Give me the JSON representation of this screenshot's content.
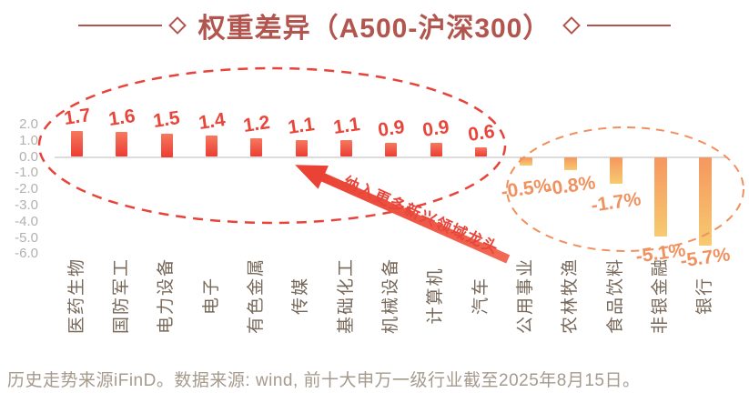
{
  "title": {
    "text": "权重差异（A500-沪深300）"
  },
  "chart_data": {
    "type": "bar",
    "title": "权重差异（A500-沪深300）",
    "categories": [
      "医药生物",
      "国防军工",
      "电力设备",
      "电子",
      "有色金属",
      "传媒",
      "基础化工",
      "机械设备",
      "计算机",
      "汽车",
      "公用事业",
      "农林牧渔",
      "食品饮料",
      "非银金融",
      "银行"
    ],
    "values": [
      1.7,
      1.6,
      1.5,
      1.4,
      1.2,
      1.1,
      1.1,
      0.9,
      0.9,
      0.6,
      -0.5,
      -0.8,
      -1.7,
      -5.1,
      -5.7
    ],
    "value_labels": [
      "1.7",
      "1.6",
      "1.5",
      "1.4",
      "1.2",
      "1.1",
      "1.1",
      "0.9",
      "0.9",
      "0.6",
      "-0.5%",
      "-0.8%",
      "-1.7%",
      "-5.1%",
      "-5.7%"
    ],
    "y_ticks": [
      "2.0",
      "1.0",
      "0.0",
      "-1.0",
      "-2.0",
      "-3.0",
      "-4.0",
      "-5.0",
      "-6.0"
    ],
    "y_tick_values": [
      2,
      1,
      0,
      -1,
      -2,
      -3,
      -4,
      -5,
      -6
    ],
    "ylim": [
      -6.8,
      2.3
    ],
    "grid": false,
    "legend": null,
    "xlabel": "",
    "ylabel": ""
  },
  "annotation": {
    "arrow_text": "纳入更多新兴领域龙头"
  },
  "footer": {
    "source_note": "历史走势来源iFinD。数据来源: wind, 前十大申万一级行业截至2025年8月15日。"
  },
  "colors": {
    "title": "#b2554e",
    "positive_bar_top": "#f6795f",
    "positive_bar_bottom": "#ea3d33",
    "positive_label": "#e8463b",
    "negative_bar_top": "#f5975f",
    "negative_bar_bottom": "#f7ca70",
    "negative_label": "#f0925f",
    "red_ellipse": "#e8433a",
    "orange_ellipse": "#f0905e",
    "arrow": "#ea4335",
    "axis_label": "#b3b0ad",
    "zero_line": "#dcdcdc",
    "category_label": "#77685a",
    "footer_text": "#a69a8d"
  }
}
